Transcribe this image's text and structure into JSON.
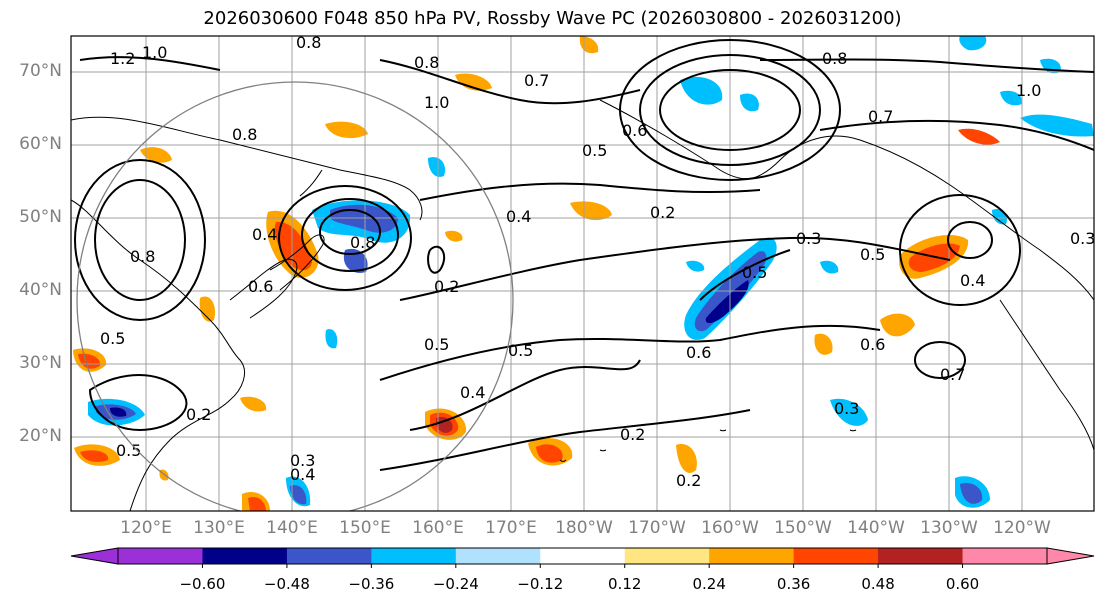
{
  "title": "2026030600 F048 850 hPa PV, Rossby Wave PC (2026030800 - 2026031200)",
  "latitudes": [
    "70°N",
    "60°N",
    "50°N",
    "40°N",
    "30°N",
    "20°N"
  ],
  "longitudes": [
    "120°E",
    "130°E",
    "140°E",
    "150°E",
    "160°E",
    "170°E",
    "180°W",
    "170°W",
    "160°W",
    "150°W",
    "140°W",
    "130°W",
    "120°W"
  ],
  "colorbar": {
    "ticks": [
      "−0.60",
      "−0.48",
      "−0.36",
      "−0.24",
      "−0.12",
      "0.12",
      "0.24",
      "0.36",
      "0.48",
      "0.60"
    ],
    "colors": [
      "#9b30d9",
      "#00008b",
      "#3a56c8",
      "#00bfff",
      "#b0e2ff",
      "#ffffff",
      "#ffe680",
      "#ffa500",
      "#ff4500",
      "#b22222",
      "#ff88aa"
    ]
  },
  "contour_labels": [
    "1.2",
    "1.0",
    "0.8",
    "0.8",
    "0.8",
    "1.0",
    "0.7",
    "0.7",
    "0.5",
    "0.4",
    "0.2",
    "0.8",
    "0.3",
    "0.5",
    "0.5",
    "0.6",
    "0.4",
    "0.5",
    "0.5",
    "0.4",
    "0.2",
    "0.8",
    "0.2",
    "0.6",
    "0.5",
    "0.7",
    "0.4",
    "0.6",
    "0.3",
    "0.3",
    "0.4",
    "0.2",
    "0.3",
    "0.5",
    "0.8",
    "0.6",
    "0.2",
    "1.0"
  ]
}
